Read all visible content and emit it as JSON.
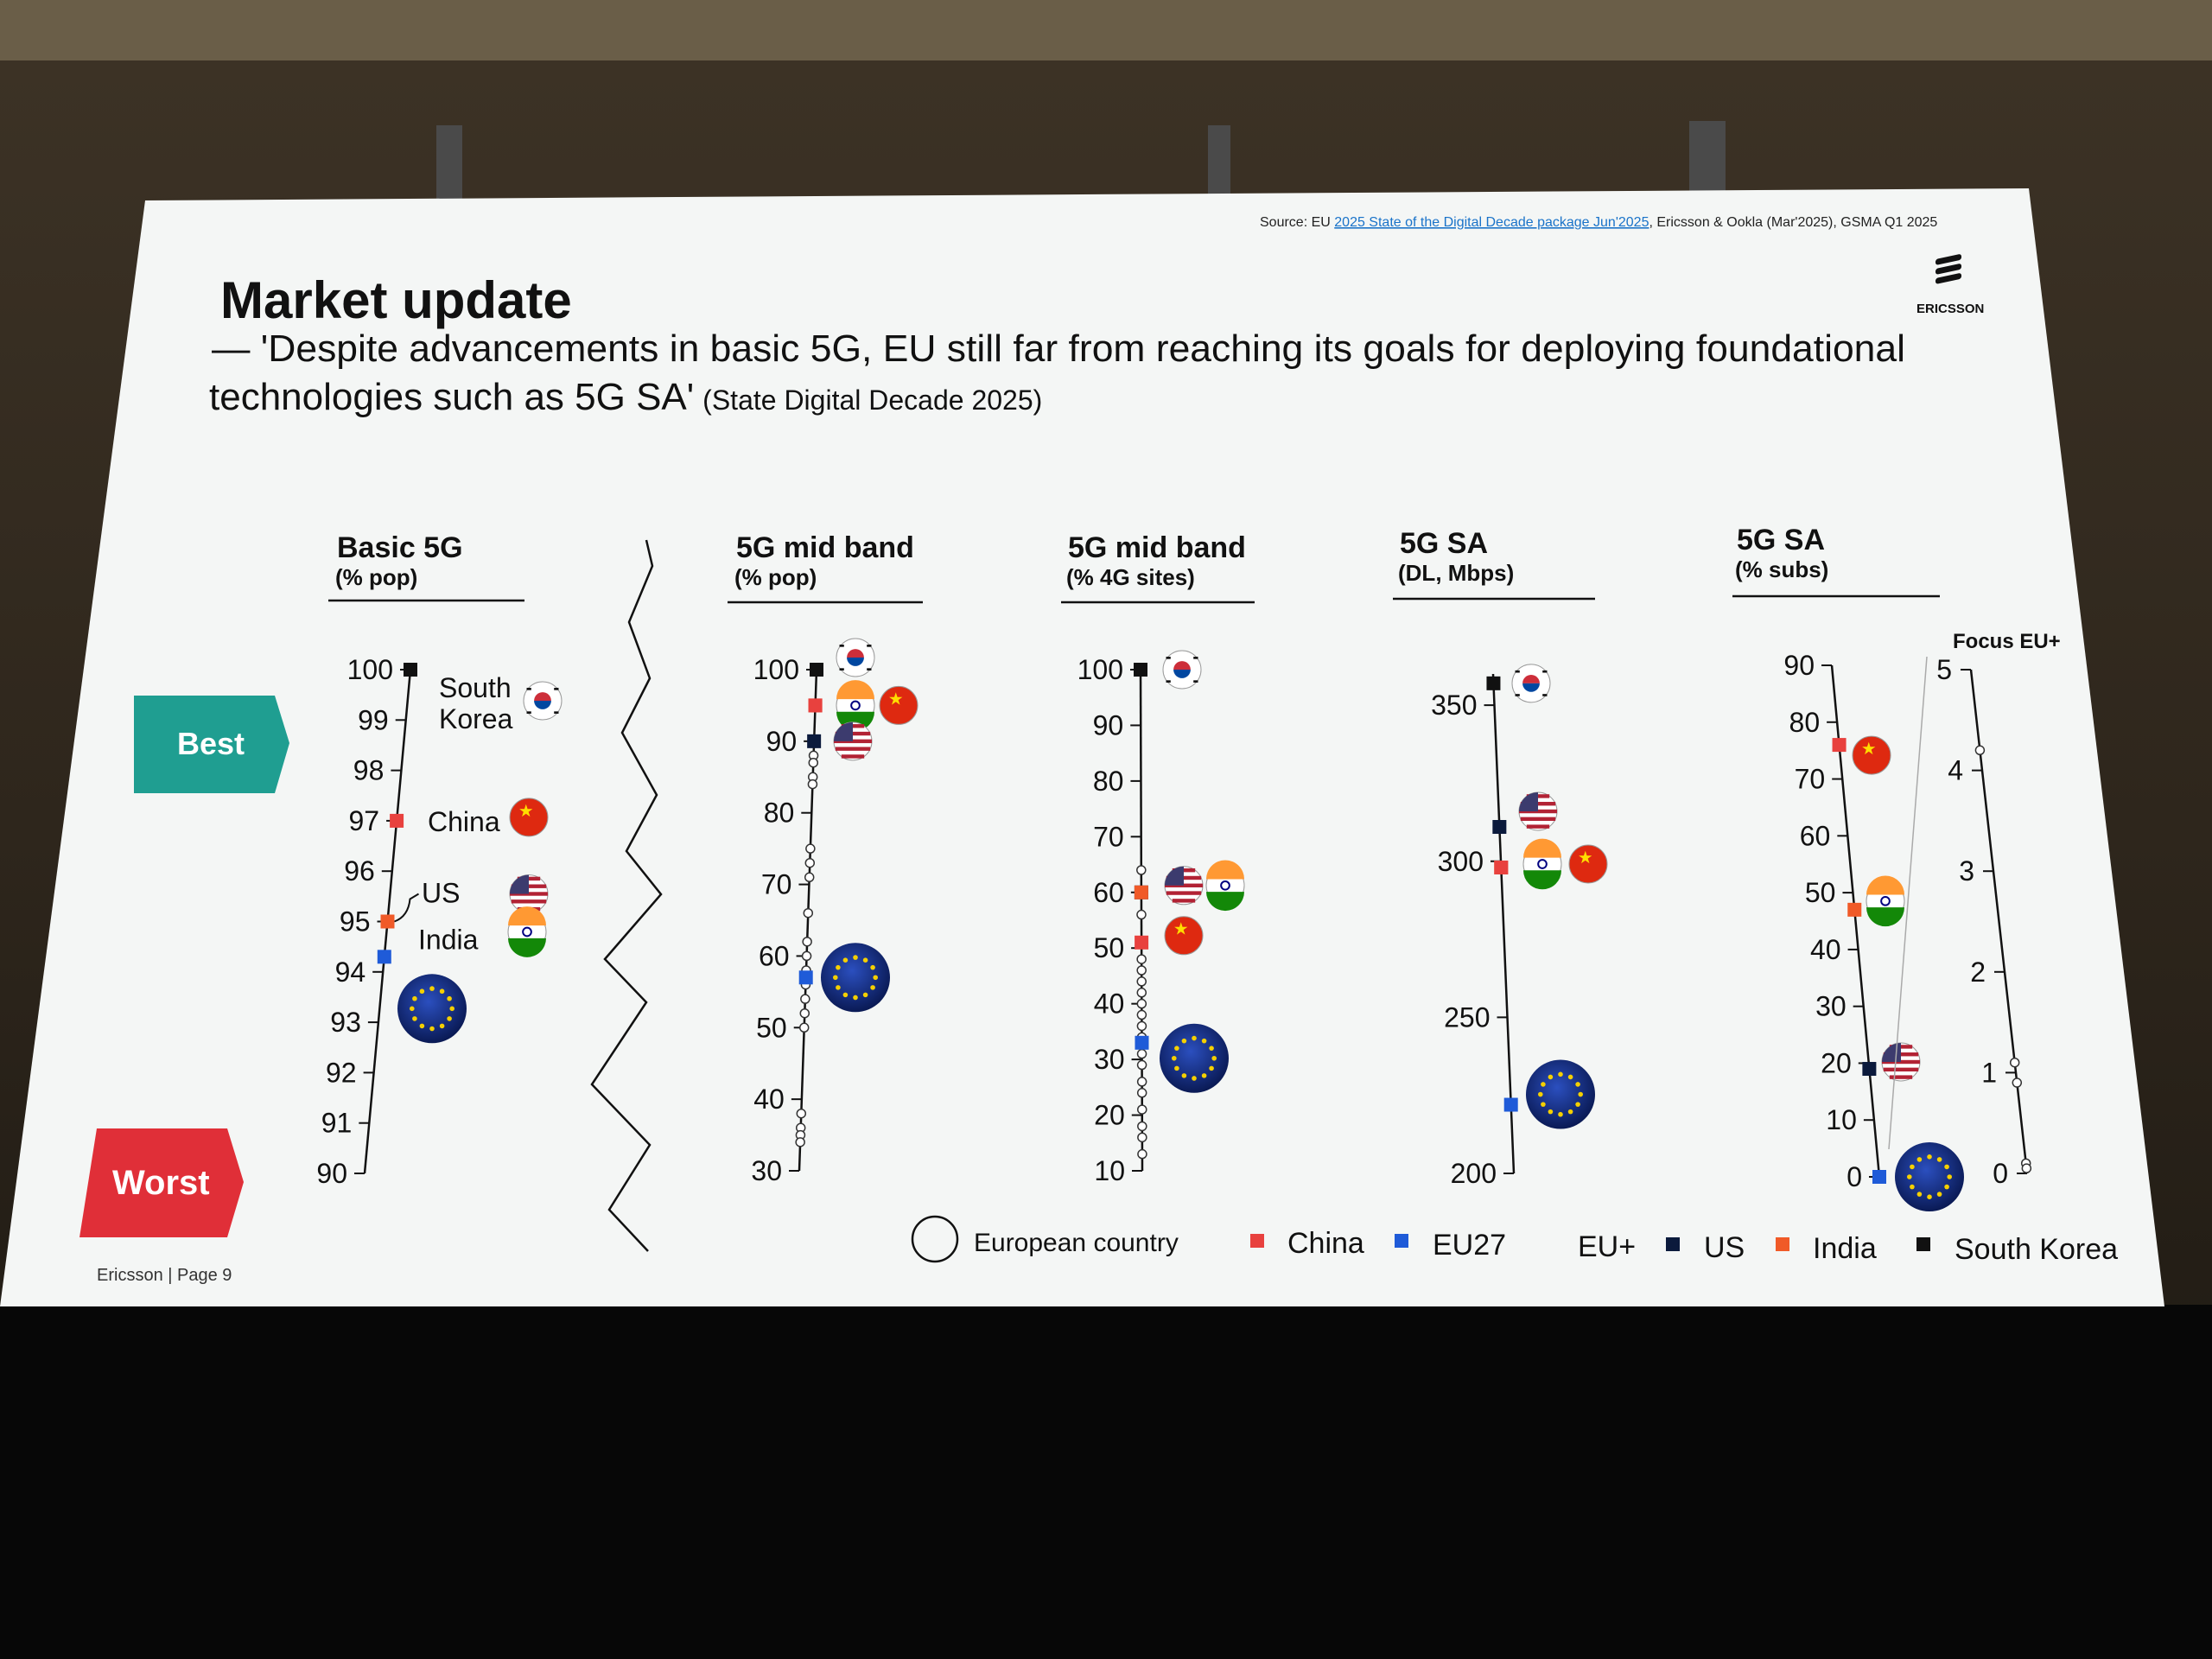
{
  "slide": {
    "source_prefix": "Source: EU ",
    "source_link": "2025 State of the Digital Decade package Jun'2025",
    "source_suffix": ", Ericsson & Ookla (Mar'2025), GSMA Q1 2025",
    "logo_text": "ERICSSON",
    "title": "Market update",
    "subtitle_line1": "— 'Despite advancements in basic 5G, EU still far from reaching its goals for deploying foundational",
    "subtitle_line2": "technologies such as 5G SA'",
    "subtitle_note": "(State Digital Decade 2025)",
    "best_label": "Best",
    "worst_label": "Worst",
    "footer": "Ericsson | Page 9"
  },
  "legend": {
    "items": [
      {
        "key": "european",
        "label": "European country"
      },
      {
        "key": "china",
        "label": "China"
      },
      {
        "key": "eu27",
        "label": "EU27"
      },
      {
        "key": "euplus",
        "label": "EU+"
      },
      {
        "key": "us",
        "label": "US"
      },
      {
        "key": "india",
        "label": "India"
      },
      {
        "key": "korea",
        "label": "South Korea"
      }
    ]
  },
  "colors": {
    "china": "#e8413e",
    "eu27": "#1f5bd8",
    "us": "#0b1a3c",
    "india": "#f05a28",
    "korea": "#111111",
    "teal": "#1f9e91",
    "red": "#e02f38"
  },
  "chart_data": [
    {
      "type": "scatter",
      "title": "Basic 5G",
      "unit": "(% pop)",
      "ylim": [
        90,
        100
      ],
      "ticks": [
        90,
        91,
        92,
        93,
        94,
        95,
        96,
        97,
        98,
        99,
        100
      ],
      "points": [
        {
          "key": "korea",
          "value": 100,
          "label_lines": [
            "South",
            "Korea"
          ],
          "flag": "korea"
        },
        {
          "key": "china",
          "value": 97,
          "label_lines": [
            "China"
          ],
          "flag": "china"
        },
        {
          "key": "us",
          "value": 95,
          "label_lines": [
            "US"
          ],
          "flag": "us"
        },
        {
          "key": "india",
          "value": 95,
          "label_lines": [
            "India"
          ],
          "flag": "india"
        },
        {
          "key": "eu27",
          "value": 94.3,
          "flag": "eu"
        }
      ]
    },
    {
      "type": "scatter",
      "title": "5G mid band",
      "unit": "(% pop)",
      "ylim": [
        30,
        100
      ],
      "ticks": [
        30,
        40,
        50,
        60,
        70,
        80,
        90,
        100
      ],
      "points": [
        {
          "key": "korea",
          "value": 100,
          "flag": "korea"
        },
        {
          "key": "india",
          "value": 95,
          "flag": "india"
        },
        {
          "key": "china",
          "value": 95,
          "flag": "china"
        },
        {
          "key": "us",
          "value": 90,
          "flag": "us"
        },
        {
          "key": "eu27",
          "value": 57,
          "flag": "eu"
        }
      ],
      "european": [
        88,
        87,
        85,
        84,
        75,
        73,
        71,
        66,
        62,
        60,
        58,
        56,
        54,
        52,
        50,
        38,
        36,
        35,
        34
      ]
    },
    {
      "type": "scatter",
      "title": "5G mid band",
      "unit": "(% 4G sites)",
      "ylim": [
        10,
        100
      ],
      "ticks": [
        10,
        20,
        30,
        40,
        50,
        60,
        70,
        80,
        90,
        100
      ],
      "points": [
        {
          "key": "korea",
          "value": 100,
          "flag": "korea"
        },
        {
          "key": "us",
          "value": 60,
          "flag": "us"
        },
        {
          "key": "india",
          "value": 60,
          "flag": "india"
        },
        {
          "key": "china",
          "value": 51,
          "flag": "china"
        },
        {
          "key": "eu27",
          "value": 33,
          "flag": "eu"
        }
      ],
      "european": [
        64,
        56,
        48,
        46,
        44,
        42,
        40,
        38,
        36,
        34,
        31,
        29,
        26,
        24,
        21,
        18,
        16,
        13
      ]
    },
    {
      "type": "scatter",
      "title": "5G SA",
      "unit": "(DL, Mbps)",
      "ylim": [
        200,
        360
      ],
      "ticks": [
        200,
        250,
        300,
        350
      ],
      "points": [
        {
          "key": "korea",
          "value": 357,
          "flag": "korea"
        },
        {
          "key": "us",
          "value": 311,
          "flag": "us"
        },
        {
          "key": "india",
          "value": 298,
          "flag": "india"
        },
        {
          "key": "china",
          "value": 298,
          "flag": "china"
        },
        {
          "key": "eu27",
          "value": 222,
          "flag": "eu"
        }
      ]
    },
    {
      "type": "scatter",
      "title": "5G SA",
      "unit": "(% subs)",
      "ylim": [
        0,
        90
      ],
      "ticks": [
        0,
        10,
        20,
        30,
        40,
        50,
        60,
        70,
        80,
        90
      ],
      "points": [
        {
          "key": "china",
          "value": 76,
          "flag": "china"
        },
        {
          "key": "india",
          "value": 47,
          "flag": "india"
        },
        {
          "key": "us",
          "value": 19,
          "flag": "us"
        },
        {
          "key": "eu27",
          "value": 0,
          "flag": "eu"
        }
      ],
      "secondary_axis": {
        "label": "Focus EU+",
        "ylim": [
          0,
          5
        ],
        "ticks": [
          0,
          1,
          2,
          3,
          4,
          5
        ],
        "european": [
          4.2,
          1.1,
          0.9,
          0.1,
          0.05
        ]
      }
    }
  ]
}
